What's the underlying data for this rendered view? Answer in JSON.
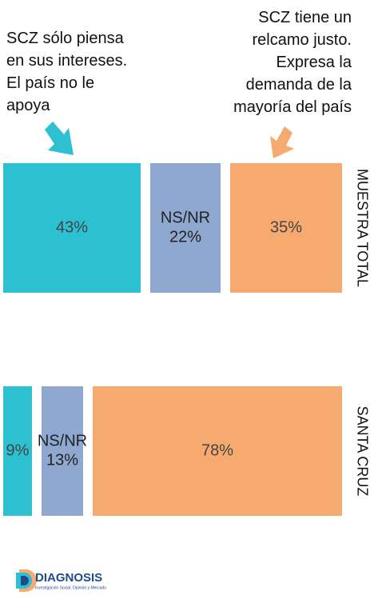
{
  "chart_data": {
    "type": "bar",
    "orientation": "horizontal",
    "stacked": true,
    "categories": [
      "MUESTRA TOTAL",
      "SANTA CRUZ"
    ],
    "xlim": [
      0,
      100
    ],
    "series": [
      {
        "name": "SCZ sólo piensa\nen sus intereses.\nEl país no le\napoya",
        "color": "#2cc0d1",
        "values": [
          43,
          9
        ],
        "value_labels": [
          "43%",
          "9%"
        ]
      },
      {
        "name": "NS/NR",
        "color": "#8fa8d0",
        "values": [
          22,
          13
        ],
        "value_labels": [
          "22%",
          "13%"
        ]
      },
      {
        "name": "SCZ tiene un\nrelcamo justo.\nExpresa la\ndemanda de la\nmayoría del país",
        "color": "#f6aa6f",
        "values": [
          35,
          78
        ],
        "value_labels": [
          "35%",
          "78%"
        ]
      }
    ]
  },
  "logo": {
    "title": "DIAGNOSIS",
    "subtitle": "Investigación Social, Opinión y Mercado"
  }
}
